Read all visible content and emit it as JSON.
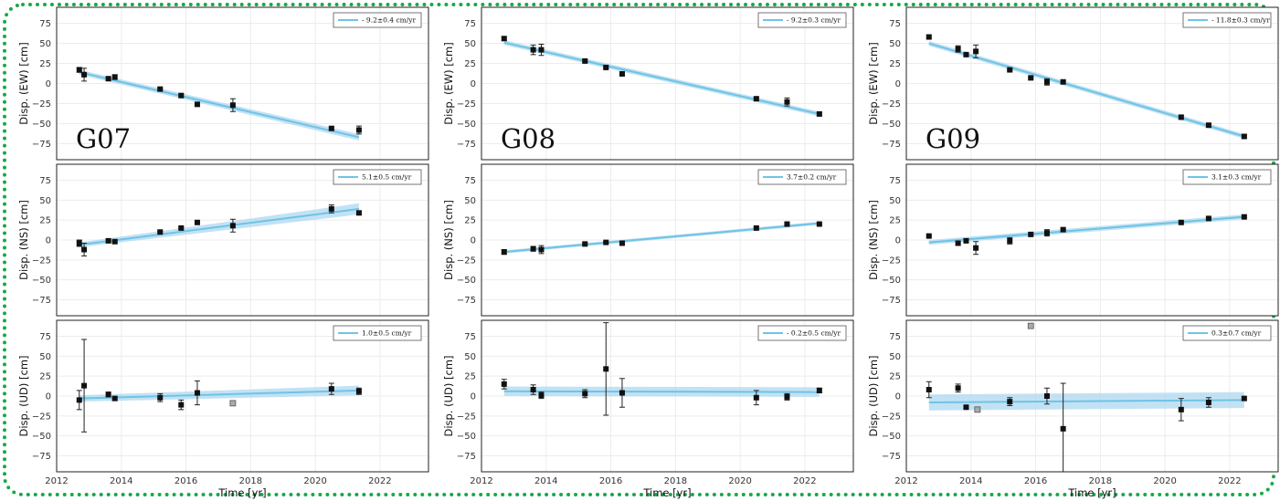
{
  "figure": {
    "border_color": "#18a84a",
    "style": "dotted"
  },
  "colors": {
    "fit_line": "#6fc3e6",
    "band": "#add8f0",
    "marker": "#111111",
    "outlier": "#aaaaaa"
  },
  "chart_data": [
    {
      "id": "G07-EW",
      "type": "scatter",
      "station": "G07",
      "ylabel": "Disp. (EW) [cm]",
      "xlabel": "",
      "legend": "- 9.2±0.4 cm/yr",
      "legend_position": "top-right",
      "xlim": [
        2012,
        2023.5
      ],
      "ylim": [
        -95,
        95
      ],
      "xticks": [
        "2012",
        "2014",
        "2016",
        "2018",
        "2020",
        "2022"
      ],
      "yticks": [
        "75",
        "50",
        "25",
        "0",
        "−25",
        "−50",
        "−75"
      ],
      "grid": true,
      "points": [
        {
          "x": 2012.7,
          "y": 17,
          "err": 3
        },
        {
          "x": 2012.85,
          "y": 11,
          "err": 8
        },
        {
          "x": 2013.6,
          "y": 6,
          "err": 2
        },
        {
          "x": 2013.8,
          "y": 8,
          "err": 3
        },
        {
          "x": 2015.2,
          "y": -7,
          "err": 1
        },
        {
          "x": 2015.85,
          "y": -15,
          "err": 2
        },
        {
          "x": 2016.35,
          "y": -26,
          "err": 2
        },
        {
          "x": 2017.45,
          "y": -27,
          "err": 8
        },
        {
          "x": 2020.5,
          "y": -56,
          "err": 2
        },
        {
          "x": 2021.35,
          "y": -58,
          "err": 5
        }
      ],
      "fit": {
        "x": [
          2012.7,
          2021.35
        ],
        "y": [
          14,
          -67
        ],
        "band": [
          3,
          4
        ]
      }
    },
    {
      "id": "G08-EW",
      "type": "scatter",
      "station": "G08",
      "ylabel": "Disp. (EW) [cm]",
      "xlabel": "",
      "legend": "- 9.2±0.3 cm/yr",
      "legend_position": "top-right",
      "xlim": [
        2012,
        2023.5
      ],
      "ylim": [
        -95,
        95
      ],
      "xticks": [
        "2012",
        "2014",
        "2016",
        "2018",
        "2020",
        "2022"
      ],
      "yticks": [
        "75",
        "50",
        "25",
        "0",
        "−25",
        "−50",
        "−75"
      ],
      "grid": true,
      "points": [
        {
          "x": 2012.7,
          "y": 56,
          "err": 2
        },
        {
          "x": 2013.6,
          "y": 42,
          "err": 6
        },
        {
          "x": 2013.85,
          "y": 42,
          "err": 7
        },
        {
          "x": 2015.2,
          "y": 28,
          "err": 1
        },
        {
          "x": 2015.85,
          "y": 20,
          "err": 1
        },
        {
          "x": 2016.35,
          "y": 12,
          "err": 2
        },
        {
          "x": 2020.5,
          "y": -19,
          "err": 2
        },
        {
          "x": 2021.45,
          "y": -23,
          "err": 5
        },
        {
          "x": 2022.45,
          "y": -38,
          "err": 2
        }
      ],
      "fit": {
        "x": [
          2012.7,
          2022.45
        ],
        "y": [
          51,
          -38
        ],
        "band": [
          3,
          3
        ]
      }
    },
    {
      "id": "G09-EW",
      "type": "scatter",
      "station": "G09",
      "ylabel": "Disp. (EW) [cm]",
      "xlabel": "",
      "legend": "- 11.8±0.3 cm/yr",
      "legend_position": "top-right",
      "xlim": [
        2012,
        2023.5
      ],
      "ylim": [
        -95,
        95
      ],
      "xticks": [
        "2012",
        "2014",
        "2016",
        "2018",
        "2020",
        "2022"
      ],
      "yticks": [
        "75",
        "50",
        "25",
        "0",
        "−25",
        "−50",
        "−75"
      ],
      "grid": true,
      "points": [
        {
          "x": 2012.7,
          "y": 58,
          "err": 2
        },
        {
          "x": 2013.6,
          "y": 43,
          "err": 4
        },
        {
          "x": 2013.85,
          "y": 36,
          "err": 2
        },
        {
          "x": 2014.15,
          "y": 40,
          "err": 8
        },
        {
          "x": 2015.2,
          "y": 17,
          "err": 1
        },
        {
          "x": 2015.85,
          "y": 7,
          "err": 1
        },
        {
          "x": 2016.35,
          "y": 2,
          "err": 4
        },
        {
          "x": 2016.85,
          "y": 2,
          "err": 2
        },
        {
          "x": 2020.5,
          "y": -42,
          "err": 2
        },
        {
          "x": 2021.35,
          "y": -52,
          "err": 2
        },
        {
          "x": 2022.45,
          "y": -66,
          "err": 2
        }
      ],
      "fit": {
        "x": [
          2012.7,
          2022.45
        ],
        "y": [
          50,
          -66
        ],
        "band": [
          3,
          3
        ]
      }
    },
    {
      "id": "G07-NS",
      "type": "scatter",
      "station": "",
      "ylabel": "Disp. (NS) [cm]",
      "xlabel": "",
      "legend": "5.1±0.5 cm/yr",
      "legend_position": "top-right",
      "xlim": [
        2012,
        2023.5
      ],
      "ylim": [
        -95,
        95
      ],
      "xticks": [
        "2012",
        "2014",
        "2016",
        "2018",
        "2020",
        "2022"
      ],
      "yticks": [
        "75",
        "50",
        "25",
        "0",
        "−25",
        "−50",
        "−75"
      ],
      "grid": true,
      "points": [
        {
          "x": 2012.7,
          "y": -4,
          "err": 4
        },
        {
          "x": 2012.85,
          "y": -12,
          "err": 8
        },
        {
          "x": 2013.6,
          "y": -1,
          "err": 2
        },
        {
          "x": 2013.8,
          "y": -2,
          "err": 2
        },
        {
          "x": 2015.2,
          "y": 10,
          "err": 1
        },
        {
          "x": 2015.85,
          "y": 15,
          "err": 1
        },
        {
          "x": 2016.35,
          "y": 22,
          "err": 1
        },
        {
          "x": 2017.45,
          "y": 18,
          "err": 8
        },
        {
          "x": 2020.5,
          "y": 39,
          "err": 5
        },
        {
          "x": 2021.35,
          "y": 34,
          "err": 2
        }
      ],
      "fit": {
        "x": [
          2012.7,
          2021.35
        ],
        "y": [
          -6,
          39
        ],
        "band": [
          3,
          7
        ]
      }
    },
    {
      "id": "G08-NS",
      "type": "scatter",
      "station": "",
      "ylabel": "Disp. (NS) [cm]",
      "xlabel": "",
      "legend": "3.7±0.2 cm/yr",
      "legend_position": "top-right",
      "xlim": [
        2012,
        2023.5
      ],
      "ylim": [
        -95,
        95
      ],
      "xticks": [
        "2012",
        "2014",
        "2016",
        "2018",
        "2020",
        "2022"
      ],
      "yticks": [
        "75",
        "50",
        "25",
        "0",
        "−25",
        "−50",
        "−75"
      ],
      "grid": true,
      "points": [
        {
          "x": 2012.7,
          "y": -15,
          "err": 3
        },
        {
          "x": 2013.6,
          "y": -11,
          "err": 3
        },
        {
          "x": 2013.85,
          "y": -12,
          "err": 5
        },
        {
          "x": 2015.2,
          "y": -5,
          "err": 1
        },
        {
          "x": 2015.85,
          "y": -3,
          "err": 1
        },
        {
          "x": 2016.35,
          "y": -4,
          "err": 1
        },
        {
          "x": 2020.5,
          "y": 15,
          "err": 1
        },
        {
          "x": 2021.45,
          "y": 20,
          "err": 1
        },
        {
          "x": 2022.45,
          "y": 20,
          "err": 1
        }
      ],
      "fit": {
        "x": [
          2012.7,
          2022.45
        ],
        "y": [
          -15,
          21
        ],
        "band": [
          2,
          2
        ]
      }
    },
    {
      "id": "G09-NS",
      "type": "scatter",
      "station": "",
      "ylabel": "Disp. (NS) [cm]",
      "xlabel": "",
      "legend": "3.1±0.3 cm/yr",
      "legend_position": "top-right",
      "xlim": [
        2012,
        2023.5
      ],
      "ylim": [
        -95,
        95
      ],
      "xticks": [
        "2012",
        "2014",
        "2016",
        "2018",
        "2020",
        "2022"
      ],
      "yticks": [
        "75",
        "50",
        "25",
        "0",
        "−25",
        "−50",
        "−75"
      ],
      "grid": true,
      "points": [
        {
          "x": 2012.7,
          "y": 5,
          "err": 1
        },
        {
          "x": 2013.6,
          "y": -4,
          "err": 2
        },
        {
          "x": 2013.85,
          "y": -1,
          "err": 2
        },
        {
          "x": 2014.15,
          "y": -10,
          "err": 8
        },
        {
          "x": 2015.2,
          "y": -1,
          "err": 4
        },
        {
          "x": 2015.85,
          "y": 7,
          "err": 1
        },
        {
          "x": 2016.35,
          "y": 9,
          "err": 4
        },
        {
          "x": 2016.85,
          "y": 13,
          "err": 1
        },
        {
          "x": 2020.5,
          "y": 22,
          "err": 1
        },
        {
          "x": 2021.35,
          "y": 27,
          "err": 1
        },
        {
          "x": 2022.45,
          "y": 29,
          "err": 1
        }
      ],
      "fit": {
        "x": [
          2012.7,
          2022.45
        ],
        "y": [
          -3,
          29
        ],
        "band": [
          3,
          3
        ]
      }
    },
    {
      "id": "G07-UD",
      "type": "scatter",
      "station": "",
      "ylabel": "Disp. (UD) [cm]",
      "xlabel": "Time [yr]",
      "legend": "1.0±0.5 cm/yr",
      "legend_position": "top-right",
      "xlim": [
        2012,
        2023.5
      ],
      "ylim": [
        -95,
        95
      ],
      "xticks": [
        "2012",
        "2014",
        "2016",
        "2018",
        "2020",
        "2022"
      ],
      "yticks": [
        "75",
        "50",
        "25",
        "0",
        "−25",
        "−50",
        "−75"
      ],
      "grid": true,
      "points": [
        {
          "x": 2012.7,
          "y": -5,
          "err": 12
        },
        {
          "x": 2012.85,
          "y": 13,
          "err": 58
        },
        {
          "x": 2013.6,
          "y": 2,
          "err": 3
        },
        {
          "x": 2013.8,
          "y": -3,
          "err": 2
        },
        {
          "x": 2015.2,
          "y": -2,
          "err": 5
        },
        {
          "x": 2015.85,
          "y": -11,
          "err": 6
        },
        {
          "x": 2016.35,
          "y": 4,
          "err": 15
        },
        {
          "x": 2020.5,
          "y": 9,
          "err": 7
        },
        {
          "x": 2021.35,
          "y": 6,
          "err": 4
        }
      ],
      "outliers": [
        {
          "x": 2017.45,
          "y": -9
        }
      ],
      "fit": {
        "x": [
          2012.7,
          2021.35
        ],
        "y": [
          -3,
          7
        ],
        "band": [
          4,
          6
        ]
      }
    },
    {
      "id": "G08-UD",
      "type": "scatter",
      "station": "",
      "ylabel": "Disp. (UD) [cm]",
      "xlabel": "Time [yr]",
      "legend": "- 0.2±0.5 cm/yr",
      "legend_position": "top-right",
      "xlim": [
        2012,
        2023.5
      ],
      "ylim": [
        -95,
        95
      ],
      "xticks": [
        "2012",
        "2014",
        "2016",
        "2018",
        "2020",
        "2022"
      ],
      "yticks": [
        "75",
        "50",
        "25",
        "0",
        "−25",
        "−50",
        "−75"
      ],
      "grid": true,
      "points": [
        {
          "x": 2012.7,
          "y": 15,
          "err": 6
        },
        {
          "x": 2013.6,
          "y": 8,
          "err": 6
        },
        {
          "x": 2013.85,
          "y": 1,
          "err": 4
        },
        {
          "x": 2015.2,
          "y": 3,
          "err": 5
        },
        {
          "x": 2015.85,
          "y": 34,
          "err": 58
        },
        {
          "x": 2016.35,
          "y": 4,
          "err": 18
        },
        {
          "x": 2020.5,
          "y": -2,
          "err": 9
        },
        {
          "x": 2021.45,
          "y": -1,
          "err": 4
        },
        {
          "x": 2022.45,
          "y": 7,
          "err": 3
        }
      ],
      "fit": {
        "x": [
          2012.7,
          2022.45
        ],
        "y": [
          6,
          5
        ],
        "band": [
          6,
          6
        ]
      }
    },
    {
      "id": "G09-UD",
      "type": "scatter",
      "station": "",
      "ylabel": "Disp. (UD) [cm]",
      "xlabel": "Time [yr]",
      "legend": "0.3±0.7 cm/yr",
      "legend_position": "top-right",
      "xlim": [
        2012,
        2023.5
      ],
      "ylim": [
        -95,
        95
      ],
      "xticks": [
        "2012",
        "2014",
        "2016",
        "2018",
        "2020",
        "2022"
      ],
      "yticks": [
        "75",
        "50",
        "25",
        "0",
        "−25",
        "−50",
        "−75"
      ],
      "grid": true,
      "points": [
        {
          "x": 2012.7,
          "y": 8,
          "err": 10
        },
        {
          "x": 2013.6,
          "y": 10,
          "err": 5
        },
        {
          "x": 2013.85,
          "y": -14,
          "err": 2
        },
        {
          "x": 2015.2,
          "y": -7,
          "err": 5
        },
        {
          "x": 2016.35,
          "y": 0,
          "err": 10
        },
        {
          "x": 2016.85,
          "y": -41,
          "err": 57
        },
        {
          "x": 2020.5,
          "y": -17,
          "err": 14
        },
        {
          "x": 2021.35,
          "y": -8,
          "err": 6
        },
        {
          "x": 2022.45,
          "y": -3,
          "err": 2
        }
      ],
      "outliers": [
        {
          "x": 2014.2,
          "y": -17
        },
        {
          "x": 2015.85,
          "y": 88
        }
      ],
      "fit": {
        "x": [
          2012.7,
          2022.45
        ],
        "y": [
          -8,
          -5
        ],
        "band": [
          10,
          10
        ]
      }
    }
  ]
}
